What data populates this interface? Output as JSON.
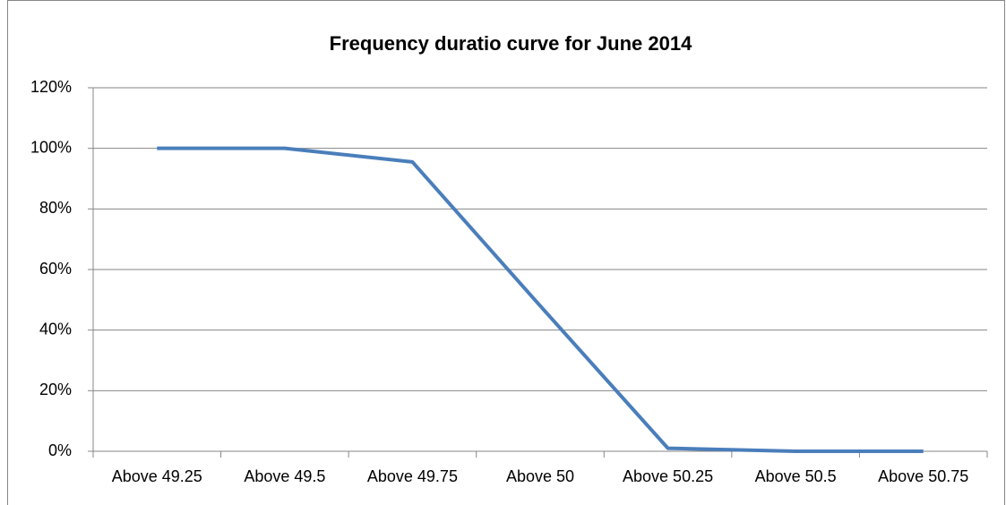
{
  "chart_data": {
    "type": "line",
    "title": "Frequency duratio curve for June 2014",
    "categories": [
      "Above 49.25",
      "Above 49.5",
      "Above 49.75",
      "Above 50",
      "Above 50.25",
      "Above 50.5",
      "Above 50.75"
    ],
    "values": [
      100,
      100,
      95.5,
      48,
      1,
      0,
      0
    ],
    "color": "#4a7ebb",
    "ylim": [
      0,
      120
    ],
    "yticks": [
      {
        "value": 0,
        "label": "0%"
      },
      {
        "value": 20,
        "label": "20%"
      },
      {
        "value": 40,
        "label": "40%"
      },
      {
        "value": 60,
        "label": "60%"
      },
      {
        "value": 80,
        "label": "80%"
      },
      {
        "value": 100,
        "label": "100%"
      },
      {
        "value": 120,
        "label": "120%"
      }
    ],
    "grid": true
  }
}
